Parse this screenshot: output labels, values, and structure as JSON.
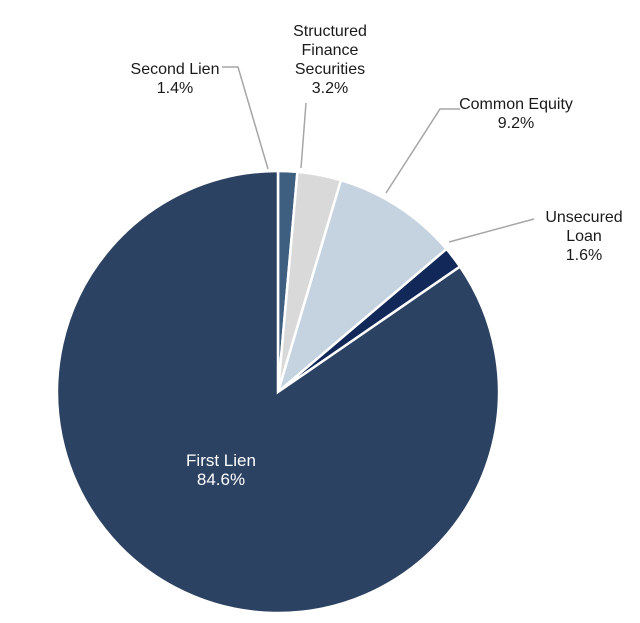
{
  "chart_data": {
    "type": "pie",
    "title": "",
    "start_angle_deg": 0,
    "direction": "clockwise",
    "slices": [
      {
        "label_lines": [
          "Second Lien"
        ],
        "value": 1.4,
        "value_text": "1.4%",
        "color": "#3f5f80"
      },
      {
        "label_lines": [
          "Structured",
          "Finance",
          "Securities"
        ],
        "value": 3.2,
        "value_text": "3.2%",
        "color": "#d9d9d9"
      },
      {
        "label_lines": [
          "Common Equity"
        ],
        "value": 9.2,
        "value_text": "9.2%",
        "color": "#c5d3e0"
      },
      {
        "label_lines": [
          "Unsecured",
          "Loan"
        ],
        "value": 1.6,
        "value_text": "1.6%",
        "color": "#112858"
      },
      {
        "label_lines": [
          "First Lien"
        ],
        "value": 84.6,
        "value_text": "84.6%",
        "color": "#2c4262"
      }
    ]
  }
}
